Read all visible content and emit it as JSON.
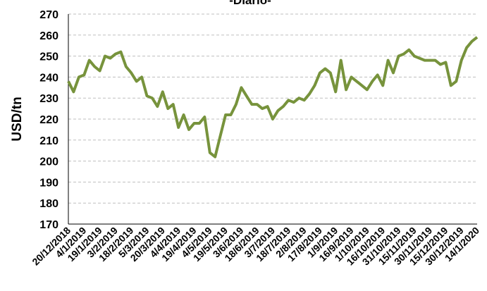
{
  "chart_data": {
    "type": "line",
    "title": "-Diario-",
    "y_label": "USD/tn",
    "ylim": [
      170,
      270
    ],
    "yticks": [
      170,
      180,
      190,
      200,
      210,
      220,
      230,
      240,
      250,
      260,
      270
    ],
    "grid": true,
    "categories": [
      "20/12/2018",
      null,
      null,
      "4/1/2019",
      null,
      null,
      "19/1/2019",
      null,
      null,
      "3/2/2019",
      null,
      null,
      "18/2/2019",
      null,
      null,
      "5/3/2019",
      null,
      null,
      "20/3/2019",
      null,
      null,
      "4/4/2019",
      null,
      null,
      "19/4/2019",
      null,
      null,
      "4/5/2019",
      null,
      null,
      "19/5/2019",
      null,
      null,
      "3/6/2019",
      null,
      null,
      "18/6/2019",
      null,
      null,
      "3/7/2019",
      null,
      null,
      "18/7/2019",
      null,
      null,
      "2/8/2019",
      null,
      null,
      "17/8/2019",
      null,
      null,
      "1/9/2019",
      null,
      null,
      "16/9/2019",
      null,
      null,
      "1/10/2019",
      null,
      null,
      "16/10/2019",
      null,
      null,
      "31/10/2019",
      null,
      null,
      "15/11/2019",
      null,
      null,
      "30/11/2019",
      null,
      null,
      "15/12/2019",
      null,
      null,
      "30/12/2019",
      null,
      null,
      "14/1/2020"
    ],
    "series": [
      {
        "name": "USD/tn",
        "color": "#77933c",
        "values": [
          238,
          233,
          240,
          241,
          248,
          245,
          243,
          250,
          249,
          251,
          252,
          245,
          242,
          238,
          240,
          231,
          230,
          226,
          233,
          225,
          227,
          216,
          222,
          215,
          218,
          218,
          221,
          204,
          202,
          212,
          222,
          222,
          227,
          235,
          231,
          227,
          227,
          225,
          226,
          220,
          224,
          226,
          229,
          228,
          230,
          229,
          232,
          236,
          242,
          244,
          242,
          233,
          248,
          234,
          240,
          238,
          236,
          234,
          238,
          241,
          236,
          248,
          242,
          250,
          251,
          253,
          250,
          249,
          248,
          248,
          248,
          246,
          247,
          236,
          238,
          248,
          254,
          257,
          259
        ]
      }
    ]
  }
}
